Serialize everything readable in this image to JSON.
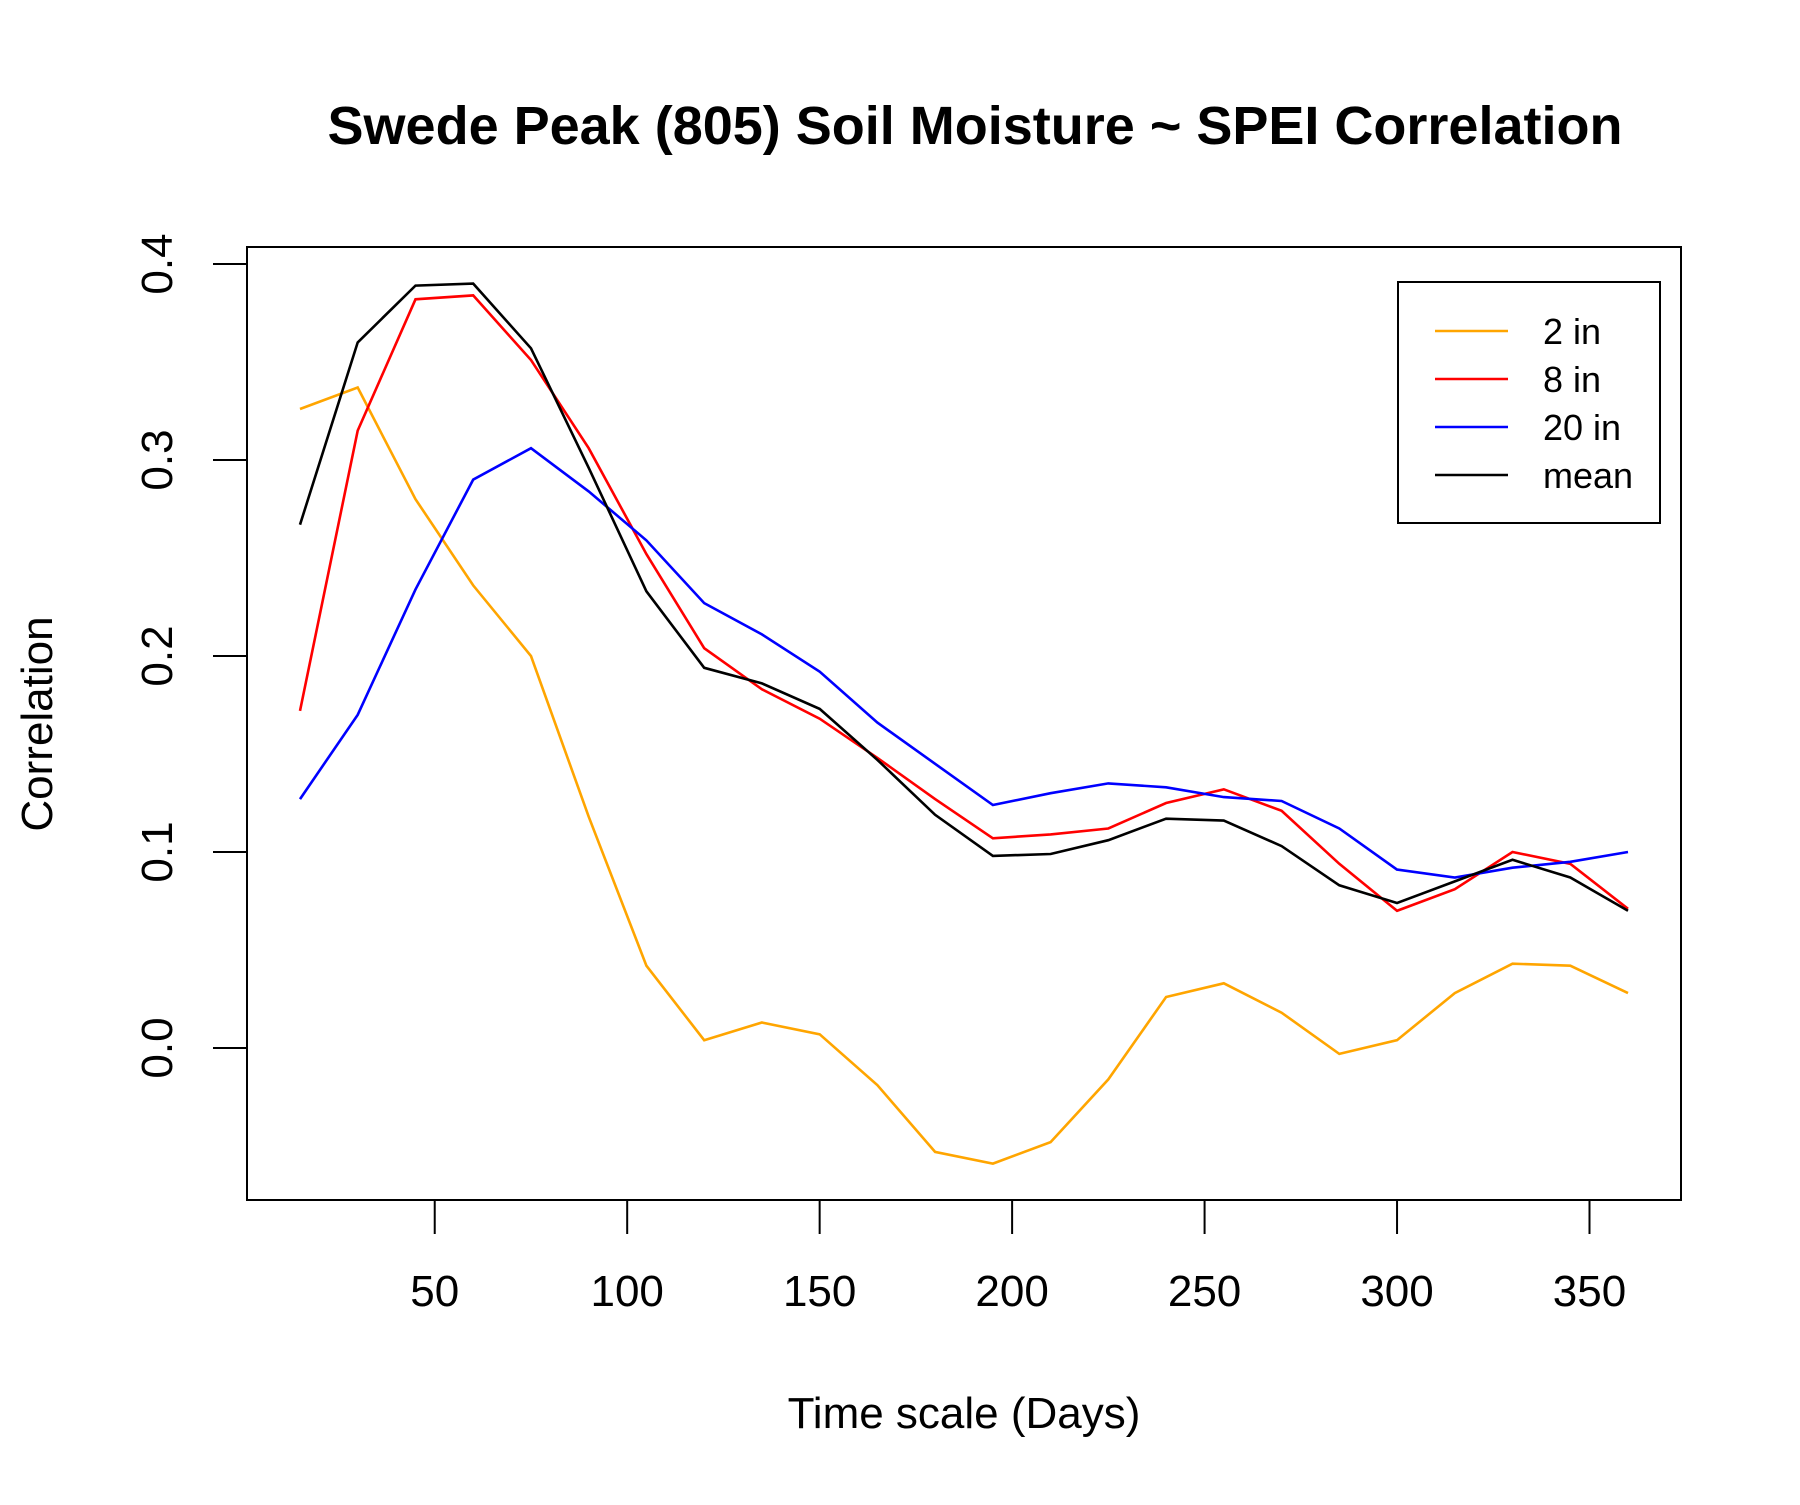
{
  "chart_data": {
    "type": "line",
    "title": "Swede Peak (805) Soil Moisture ~ SPEI Correlation",
    "xlabel": "Time scale (Days)",
    "ylabel": "Correlation",
    "xlim": [
      15,
      360
    ],
    "ylim": [
      -0.06,
      0.39
    ],
    "x_ticks": [
      50,
      100,
      150,
      200,
      250,
      300,
      350
    ],
    "x_tick_labels": [
      "50",
      "100",
      "150",
      "200",
      "250",
      "300",
      "350"
    ],
    "y_ticks": [
      0.0,
      0.1,
      0.2,
      0.3,
      0.4
    ],
    "y_tick_labels": [
      "0.0",
      "0.1",
      "0.2",
      "0.3",
      "0.4"
    ],
    "grid": false,
    "legend_position": "top-right",
    "x": [
      15,
      30,
      45,
      60,
      75,
      90,
      105,
      120,
      135,
      150,
      165,
      180,
      195,
      210,
      225,
      240,
      255,
      270,
      285,
      300,
      315,
      330,
      345,
      360
    ],
    "series": [
      {
        "name": "2 in",
        "color": "#FFA500",
        "values": [
          0.326,
          0.337,
          0.28,
          0.236,
          0.2,
          0.118,
          0.042,
          0.004,
          0.013,
          0.007,
          -0.019,
          -0.053,
          -0.059,
          -0.048,
          -0.016,
          0.026,
          0.033,
          0.018,
          -0.003,
          0.004,
          0.028,
          0.043,
          0.042,
          0.028
        ]
      },
      {
        "name": "8 in",
        "color": "#FF0000",
        "values": [
          0.172,
          0.315,
          0.382,
          0.384,
          0.351,
          0.306,
          0.252,
          0.204,
          0.183,
          0.168,
          0.148,
          0.127,
          0.107,
          0.109,
          0.112,
          0.125,
          0.132,
          0.121,
          0.094,
          0.07,
          0.081,
          0.1,
          0.094,
          0.071
        ]
      },
      {
        "name": "20 in",
        "color": "#0000FF",
        "values": [
          0.127,
          0.17,
          0.234,
          0.29,
          0.306,
          0.284,
          0.259,
          0.227,
          0.211,
          0.192,
          0.166,
          0.145,
          0.124,
          0.13,
          0.135,
          0.133,
          0.128,
          0.126,
          0.112,
          0.091,
          0.087,
          0.092,
          0.095,
          0.1
        ]
      },
      {
        "name": "mean",
        "color": "#000000",
        "values": [
          0.267,
          0.36,
          0.389,
          0.39,
          0.357,
          0.296,
          0.233,
          0.194,
          0.186,
          0.173,
          0.147,
          0.119,
          0.098,
          0.099,
          0.106,
          0.117,
          0.116,
          0.103,
          0.083,
          0.074,
          0.085,
          0.096,
          0.087,
          0.07
        ]
      }
    ]
  }
}
